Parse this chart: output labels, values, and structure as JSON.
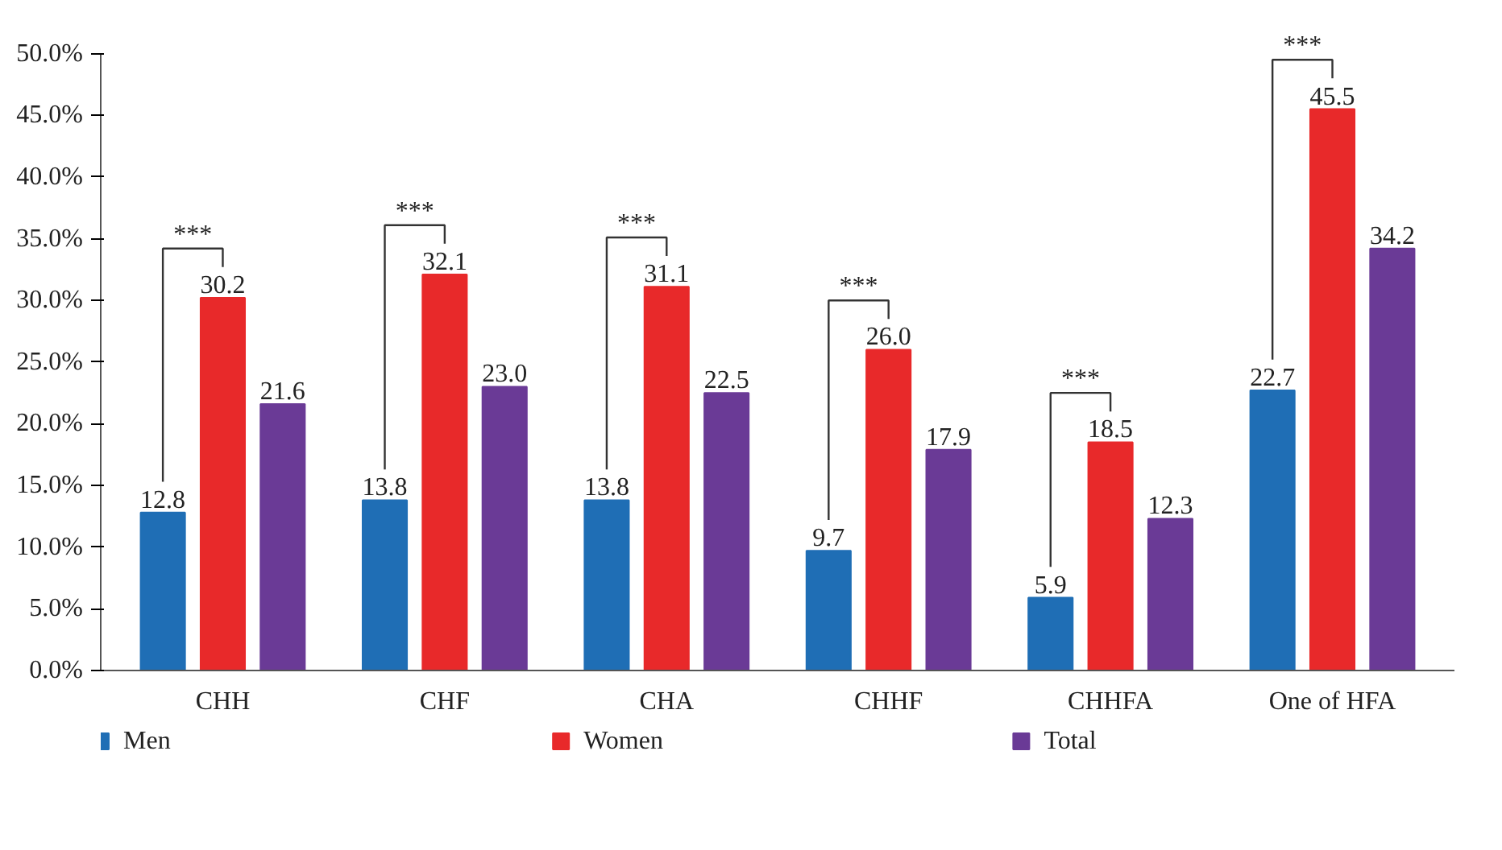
{
  "chart_data": {
    "type": "bar",
    "categories": [
      "CHH",
      "CHF",
      "CHA",
      "CHHF",
      "CHHFA",
      "One of HFA"
    ],
    "series": [
      {
        "name": "Men",
        "color": "#1f6eb5",
        "values": [
          12.8,
          13.8,
          13.8,
          9.7,
          5.9,
          22.7
        ],
        "value_labels": [
          "12.8",
          "13.8",
          "13.8",
          "9.7",
          "5.9",
          "22.7"
        ]
      },
      {
        "name": "Women",
        "color": "#e8292a",
        "values": [
          30.2,
          32.1,
          31.1,
          26.0,
          18.5,
          45.5
        ],
        "value_labels": [
          "30.2",
          "32.1",
          "31.1",
          "26.0",
          "18.5",
          "45.5"
        ]
      },
      {
        "name": "Total",
        "color": "#6a3a96",
        "values": [
          21.6,
          23.0,
          22.5,
          17.9,
          12.3,
          34.2
        ],
        "value_labels": [
          "21.6",
          "23.0",
          "22.5",
          "17.9",
          "12.3",
          "34.2"
        ]
      }
    ],
    "data_labels": true,
    "ylim": [
      0,
      50
    ],
    "yticks": [
      {
        "value": 0,
        "label": "0.0%"
      },
      {
        "value": 5,
        "label": "5.0%"
      },
      {
        "value": 10,
        "label": "10.0%"
      },
      {
        "value": 15,
        "label": "15.0%"
      },
      {
        "value": 20,
        "label": "20.0%"
      },
      {
        "value": 25,
        "label": "25.0%"
      },
      {
        "value": 30,
        "label": "30.0%"
      },
      {
        "value": 35,
        "label": "35.0%"
      },
      {
        "value": 40,
        "label": "40.0%"
      },
      {
        "value": 45,
        "label": "45.0%"
      },
      {
        "value": 50,
        "label": "50.0%"
      }
    ],
    "grid": false,
    "legend": "bottom",
    "annotations": [
      "***",
      "***",
      "***",
      "***",
      "***",
      "***"
    ]
  }
}
